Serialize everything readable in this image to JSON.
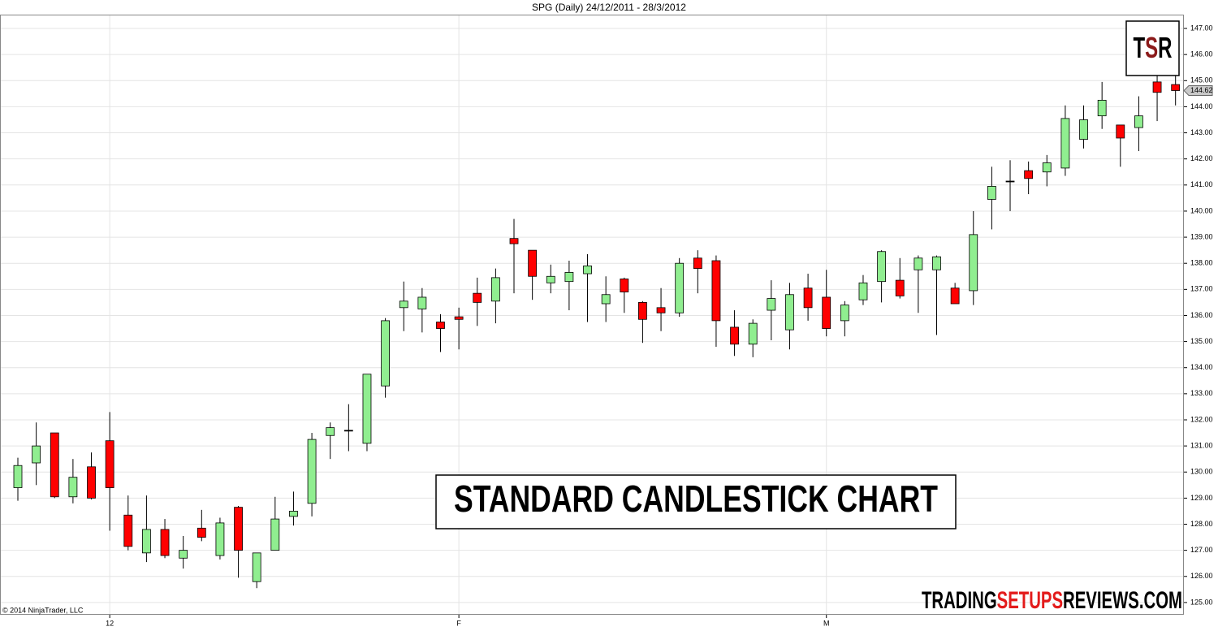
{
  "chart_data": {
    "type": "candlestick",
    "title": "SPG (Daily)  24/12/2011 - 28/3/2012",
    "copyright": "© 2014 NinjaTrader, LLC",
    "annotation": "STANDARD CANDLESTICK CHART",
    "logo": [
      "T",
      "S",
      "R"
    ],
    "watermark": [
      "TRADING",
      "SETUPS",
      "REVIEWS.COM"
    ],
    "categories": [
      null,
      null,
      null,
      null,
      null,
      "12",
      null,
      null,
      null,
      null,
      null,
      null,
      null,
      null,
      null,
      null,
      null,
      null,
      null,
      null,
      null,
      null,
      null,
      null,
      "F",
      null,
      null,
      null,
      null,
      null,
      null,
      null,
      null,
      null,
      null,
      null,
      null,
      null,
      null,
      null,
      null,
      null,
      null,
      null,
      "M",
      null,
      null,
      null,
      null,
      null,
      null,
      null,
      null,
      null,
      null,
      null,
      null,
      null,
      null,
      null,
      null,
      null,
      null,
      null
    ],
    "open": [
      129.4,
      130.35,
      131.5,
      129.05,
      130.2,
      131.2,
      128.35,
      126.9,
      127.8,
      126.7,
      127.85,
      126.8,
      128.65,
      125.8,
      127.0,
      128.3,
      128.8,
      131.4,
      131.6,
      131.1,
      133.3,
      136.3,
      136.25,
      135.75,
      135.95,
      136.85,
      136.55,
      138.95,
      138.5,
      137.25,
      137.3,
      137.6,
      136.45,
      137.4,
      136.5,
      136.3,
      136.1,
      138.2,
      138.1,
      135.55,
      134.9,
      136.2,
      135.45,
      137.05,
      136.7,
      135.8,
      136.6,
      137.3,
      137.35,
      137.75,
      137.75,
      137.05,
      136.95,
      140.45,
      141.15,
      141.55,
      141.5,
      141.65,
      142.75,
      143.65,
      143.3,
      143.2,
      144.95,
      144.85
    ],
    "high": [
      130.55,
      131.9,
      131.5,
      130.5,
      130.75,
      132.3,
      129.1,
      129.1,
      128.2,
      127.55,
      128.55,
      128.25,
      128.7,
      126.9,
      129.05,
      129.25,
      131.5,
      131.9,
      132.6,
      133.75,
      135.9,
      137.3,
      137.05,
      136.05,
      136.3,
      137.45,
      137.8,
      139.7,
      138.5,
      137.95,
      138.1,
      138.35,
      137.5,
      137.45,
      136.55,
      137.05,
      138.2,
      138.5,
      138.3,
      136.2,
      135.85,
      137.35,
      137.25,
      137.6,
      137.75,
      136.55,
      137.55,
      138.5,
      138.2,
      138.3,
      138.3,
      137.25,
      140.0,
      141.7,
      141.95,
      141.9,
      142.15,
      144.05,
      144.05,
      144.95,
      143.3,
      144.4,
      145.25,
      145.3
    ],
    "low": [
      128.9,
      129.5,
      129.0,
      128.8,
      128.95,
      127.75,
      127.0,
      126.55,
      126.7,
      126.3,
      127.35,
      126.65,
      125.95,
      125.55,
      127.0,
      127.95,
      128.3,
      130.5,
      130.8,
      130.8,
      132.85,
      135.4,
      135.35,
      134.6,
      134.7,
      135.6,
      135.7,
      136.85,
      136.6,
      136.85,
      136.2,
      135.75,
      135.75,
      136.1,
      134.95,
      135.4,
      135.95,
      136.85,
      134.8,
      134.45,
      134.4,
      135.05,
      134.7,
      135.8,
      135.2,
      135.2,
      136.4,
      136.5,
      136.65,
      136.1,
      135.25,
      136.45,
      136.4,
      139.3,
      140.0,
      140.65,
      140.95,
      141.35,
      142.4,
      143.15,
      141.7,
      142.3,
      143.45,
      144.05
    ],
    "close": [
      130.25,
      131.0,
      129.05,
      129.8,
      129.0,
      129.4,
      127.15,
      127.8,
      126.8,
      127.0,
      127.5,
      128.05,
      127.0,
      126.9,
      128.2,
      128.5,
      131.25,
      131.7,
      131.6,
      133.75,
      135.8,
      136.55,
      136.7,
      135.5,
      135.85,
      136.5,
      137.45,
      138.75,
      137.5,
      137.5,
      137.65,
      137.9,
      136.8,
      136.9,
      135.85,
      136.1,
      138.0,
      137.8,
      135.8,
      134.9,
      135.7,
      136.65,
      136.8,
      136.3,
      135.5,
      136.4,
      137.25,
      138.45,
      136.75,
      138.2,
      138.25,
      136.45,
      139.1,
      140.95,
      141.15,
      141.25,
      141.85,
      143.55,
      143.5,
      144.25,
      142.8,
      143.65,
      144.55,
      144.62
    ],
    "up_color": "#90ee90",
    "down_color": "#ff0000",
    "last_price": 144.62,
    "ylim": [
      124.53,
      147.53
    ],
    "yticks": [
      {
        "value": 125,
        "label": "125.00"
      },
      {
        "value": 126,
        "label": "126.00"
      },
      {
        "value": 127,
        "label": "127.00"
      },
      {
        "value": 128,
        "label": "128.00"
      },
      {
        "value": 129,
        "label": "129.00"
      },
      {
        "value": 130,
        "label": "130.00"
      },
      {
        "value": 131,
        "label": "131.00"
      },
      {
        "value": 132,
        "label": "132.00"
      },
      {
        "value": 133,
        "label": "133.00"
      },
      {
        "value": 134,
        "label": "134.00"
      },
      {
        "value": 135,
        "label": "135.00"
      },
      {
        "value": 136,
        "label": "136.00"
      },
      {
        "value": 137,
        "label": "137.00"
      },
      {
        "value": 138,
        "label": "138.00"
      },
      {
        "value": 139,
        "label": "139.00"
      },
      {
        "value": 140,
        "label": "140.00"
      },
      {
        "value": 141,
        "label": "141.00"
      },
      {
        "value": 142,
        "label": "142.00"
      },
      {
        "value": 143,
        "label": "143.00"
      },
      {
        "value": 144,
        "label": "144.00"
      },
      {
        "value": 145,
        "label": "145.00"
      },
      {
        "value": 146,
        "label": "146.00"
      },
      {
        "value": 147,
        "label": "147.00"
      }
    ],
    "grid": true
  }
}
